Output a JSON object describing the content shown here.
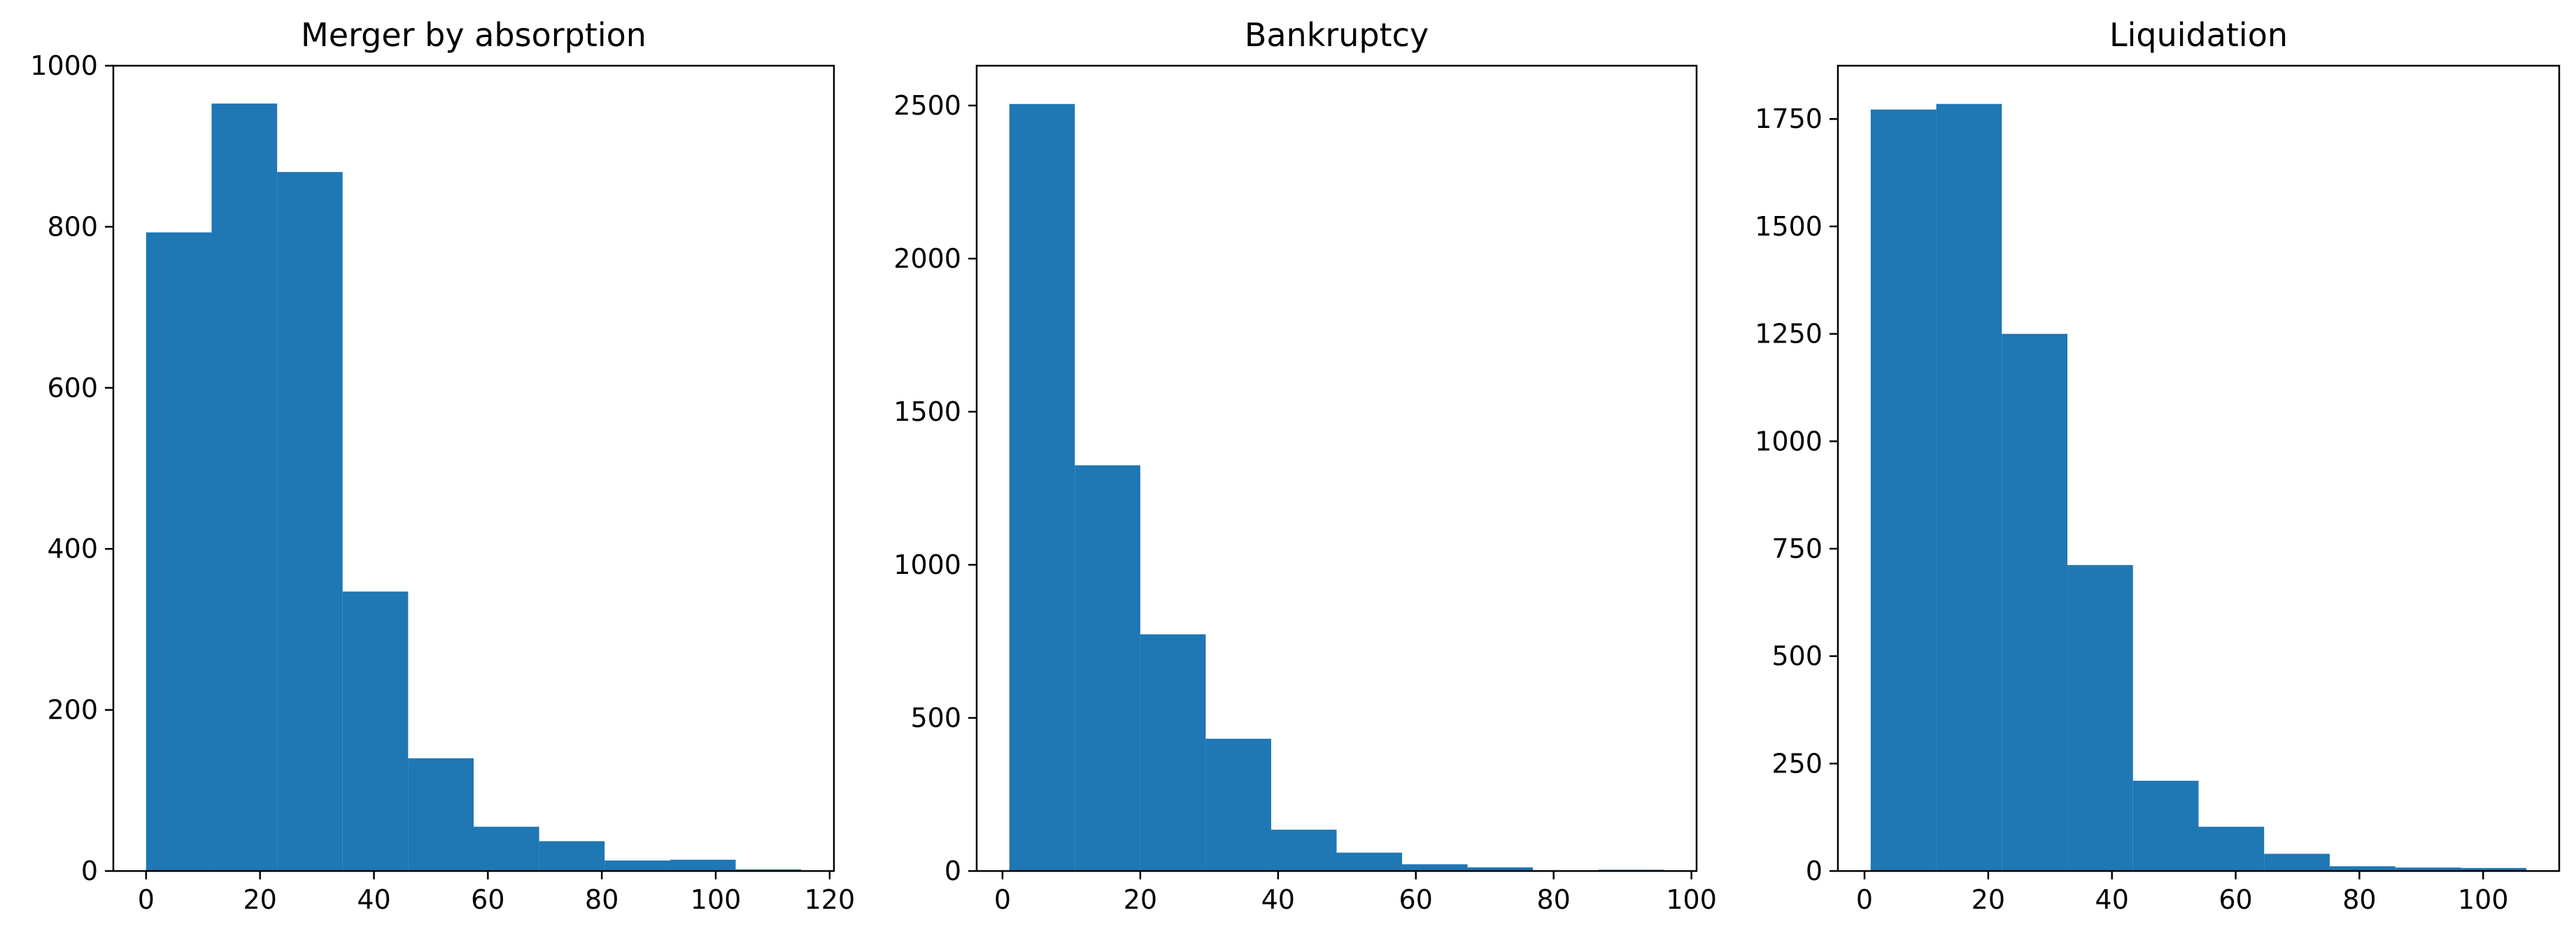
{
  "chart_data": [
    {
      "type": "bar",
      "title": "Merger by absorption",
      "xlabel": "",
      "ylabel": "",
      "bin_edges": [
        0,
        11.5,
        23,
        34.5,
        46,
        57.5,
        69,
        80.5,
        92,
        103.5,
        115
      ],
      "values": [
        793,
        953,
        868,
        347,
        140,
        55,
        37,
        13,
        14,
        2
      ],
      "xlim": [
        -5.75,
        120.75
      ],
      "ylim": [
        0,
        1000
      ],
      "xticks": [
        0,
        20,
        40,
        60,
        80,
        100,
        120
      ],
      "yticks": [
        0,
        200,
        400,
        600,
        800,
        1000
      ],
      "color": "#1f77b4",
      "grid": false
    },
    {
      "type": "bar",
      "title": "Bankruptcy",
      "xlabel": "",
      "ylabel": "",
      "bin_edges": [
        1,
        10.5,
        20,
        29.5,
        39,
        48.5,
        58,
        67.5,
        77,
        86.5,
        96
      ],
      "values": [
        2505,
        1325,
        773,
        432,
        135,
        60,
        22,
        12,
        2,
        4
      ],
      "xlim": [
        -3.75,
        100.75
      ],
      "ylim": [
        0,
        2630
      ],
      "xticks": [
        0,
        20,
        40,
        60,
        80,
        100
      ],
      "yticks": [
        0,
        500,
        1000,
        1500,
        2000,
        2500
      ],
      "color": "#1f77b4",
      "grid": false
    },
    {
      "type": "bar",
      "title": "Liquidation",
      "xlabel": "",
      "ylabel": "",
      "bin_edges": [
        1,
        11.6,
        22.2,
        32.8,
        43.4,
        54,
        64.6,
        75.2,
        85.8,
        96.4,
        107
      ],
      "values": [
        1772,
        1785,
        1250,
        712,
        210,
        103,
        40,
        11,
        8,
        7
      ],
      "xlim": [
        -4.3,
        112.3
      ],
      "ylim": [
        0,
        1874
      ],
      "xticks": [
        0,
        20,
        40,
        60,
        80,
        100
      ],
      "yticks": [
        0,
        250,
        500,
        750,
        1000,
        1250,
        1500,
        1750
      ],
      "color": "#1f77b4",
      "grid": false
    }
  ]
}
